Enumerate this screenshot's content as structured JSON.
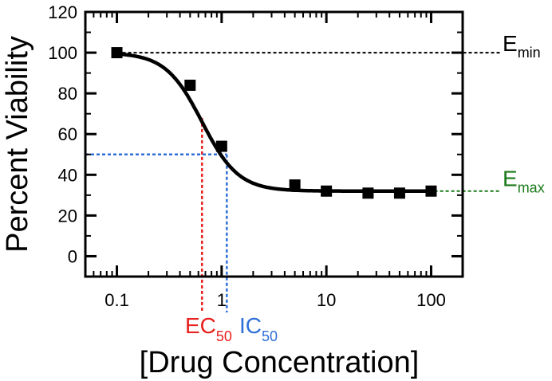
{
  "chart_data": {
    "type": "scatter",
    "title": "",
    "xlabel": "[Drug Concentration]",
    "ylabel": "Percent Viability",
    "xscale": "log",
    "xlim": [
      0.05,
      200
    ],
    "ylim": [
      -10,
      120
    ],
    "x_ticks": [
      0.1,
      1,
      10,
      100
    ],
    "x_tick_labels": [
      "0.1",
      "1",
      "10",
      "100"
    ],
    "y_ticks": [
      0,
      20,
      40,
      60,
      80,
      100,
      120
    ],
    "y_tick_labels": [
      "0",
      "20",
      "40",
      "60",
      "80",
      "100",
      "120"
    ],
    "grid": false,
    "legend": "none",
    "series": [
      {
        "points": [
          {
            "x": 0.1,
            "y": 100
          },
          {
            "x": 0.5,
            "y": 84
          },
          {
            "x": 1.0,
            "y": 54
          },
          {
            "x": 5,
            "y": 35
          },
          {
            "x": 10,
            "y": 32
          },
          {
            "x": 25,
            "y": 31
          },
          {
            "x": 50,
            "y": 31
          },
          {
            "x": 100,
            "y": 32
          }
        ],
        "fit_curve": {
          "model": "four-parameter logistic",
          "top": 100,
          "bottom": 32,
          "ec50": 0.65,
          "hill": 2.5
        },
        "color": "#000000"
      }
    ],
    "annotations": {
      "emin": {
        "main": "E",
        "sub": "min",
        "y": 100,
        "color": "#000000"
      },
      "emax": {
        "main": "E",
        "sub": "max",
        "y": 32,
        "color": "#1a7a1a"
      },
      "ec50": {
        "main": "EC",
        "sub": "50",
        "x": 0.65,
        "color": "#e8201e"
      },
      "ic50": {
        "main": "IC",
        "sub": "50",
        "x": 1.12,
        "y": 50,
        "color": "#2f6fd8"
      }
    }
  }
}
